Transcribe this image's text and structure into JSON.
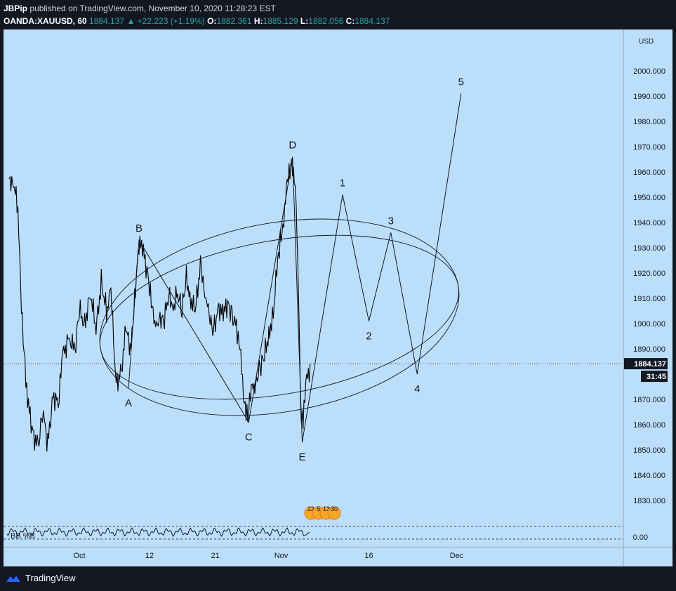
{
  "header": {
    "publisher": "JBPip",
    "published_text": "published on TradingView.com, November 10, 2020 11:28:23 EST",
    "symbol": "OANDA:XAUUSD, 60",
    "last": "1884.137",
    "change": "+22.223 (+1.19%)",
    "o_label": "O:",
    "o_value": "1882.361",
    "h_label": "H:",
    "h_value": "1885.129",
    "l_label": "L:",
    "l_value": "1882.056",
    "c_label": "C:",
    "c_value": "1884.137"
  },
  "footer": {
    "brand": "TradingView"
  },
  "colors": {
    "background": "#bbdefb",
    "frame": "#131722",
    "candle": "#000000",
    "price_tag": "#131722"
  },
  "chart_data": {
    "type": "line",
    "currency": "USD",
    "y_ticks": [
      "2000.000",
      "1990.000",
      "1980.000",
      "1970.000",
      "1960.000",
      "1950.000",
      "1940.000",
      "1930.000",
      "1920.000",
      "1910.000",
      "1900.000",
      "1890.000",
      "1870.000",
      "1860.000",
      "1850.000",
      "1840.000",
      "1830.000"
    ],
    "y_range": [
      1826,
      2018
    ],
    "x_ticks": [
      {
        "label": "Oct",
        "d": 0
      },
      {
        "label": "12",
        "d": 8
      },
      {
        "label": "21",
        "d": 15.5
      },
      {
        "label": "Nov",
        "d": 23
      },
      {
        "label": "16",
        "d": 33
      },
      {
        "label": "Dec",
        "d": 43
      }
    ],
    "current_price": "1884.137",
    "countdown": "31:45",
    "price_series": [
      [
        -8,
        1955
      ],
      [
        -7.6,
        1958
      ],
      [
        -7,
        1945
      ],
      [
        -6.6,
        1905
      ],
      [
        -6.2,
        1885
      ],
      [
        -5.9,
        1870
      ],
      [
        -5.4,
        1858
      ],
      [
        -4.7,
        1851
      ],
      [
        -4.2,
        1866
      ],
      [
        -3.6,
        1852
      ],
      [
        -3.0,
        1872
      ],
      [
        -2.4,
        1868
      ],
      [
        -1.9,
        1887
      ],
      [
        -1.2,
        1895
      ],
      [
        -0.5,
        1889
      ],
      [
        0,
        1905
      ],
      [
        0.6,
        1900
      ],
      [
        1.3,
        1912
      ],
      [
        1.9,
        1897
      ],
      [
        2.5,
        1917
      ],
      [
        3.1,
        1905
      ],
      [
        3.6,
        1912
      ],
      [
        4.2,
        1876
      ],
      [
        4.8,
        1882
      ],
      [
        5.3,
        1897
      ],
      [
        5.9,
        1890
      ],
      [
        6.3,
        1911
      ],
      [
        6.8,
        1932
      ],
      [
        7.3,
        1928
      ],
      [
        7.8,
        1920
      ],
      [
        8.2,
        1910
      ],
      [
        8.6,
        1897
      ],
      [
        9.1,
        1904
      ],
      [
        9.6,
        1900
      ],
      [
        10.2,
        1911
      ],
      [
        10.6,
        1906
      ],
      [
        11.2,
        1912
      ],
      [
        11.7,
        1905
      ],
      [
        12.2,
        1918
      ],
      [
        12.7,
        1910
      ],
      [
        13.2,
        1904
      ],
      [
        13.8,
        1924
      ],
      [
        14.3,
        1914
      ],
      [
        14.8,
        1901
      ],
      [
        15.3,
        1898
      ],
      [
        15.9,
        1907
      ],
      [
        16.4,
        1903
      ],
      [
        16.9,
        1908
      ],
      [
        17.4,
        1904
      ],
      [
        18.0,
        1897
      ],
      [
        18.4,
        1885
      ],
      [
        18.8,
        1870
      ],
      [
        19.2,
        1863
      ],
      [
        19.6,
        1873
      ],
      [
        20.1,
        1878
      ],
      [
        20.6,
        1882
      ],
      [
        21.1,
        1887
      ],
      [
        21.6,
        1896
      ],
      [
        22.1,
        1904
      ],
      [
        22.5,
        1920
      ],
      [
        22.9,
        1932
      ],
      [
        23.3,
        1943
      ],
      [
        23.7,
        1955
      ],
      [
        24.1,
        1962
      ],
      [
        24.4,
        1964
      ],
      [
        24.7,
        1947
      ],
      [
        25.0,
        1909
      ],
      [
        25.2,
        1868
      ],
      [
        25.5,
        1862
      ],
      [
        25.9,
        1877
      ],
      [
        26.3,
        1884
      ]
    ],
    "oscillator": {
      "label": "BB %B",
      "level_label": "0.00"
    },
    "event_icons": [
      "22",
      "5",
      "13",
      "30"
    ],
    "annotations": {
      "points": [
        {
          "label": "A",
          "d": 5.6,
          "v": 1874.5
        },
        {
          "label": "B",
          "d": 6.8,
          "v": 1933
        },
        {
          "label": "C",
          "d": 19.3,
          "v": 1861
        },
        {
          "label": "D",
          "d": 24.3,
          "v": 1966
        },
        {
          "label": "E",
          "d": 25.4,
          "v": 1853
        },
        {
          "label": "1",
          "d": 30.0,
          "v": 1951
        },
        {
          "label": "2",
          "d": 33.0,
          "v": 1901
        },
        {
          "label": "3",
          "d": 35.5,
          "v": 1936
        },
        {
          "label": "4",
          "d": 38.5,
          "v": 1880
        },
        {
          "label": "5",
          "d": 43.5,
          "v": 1991
        }
      ],
      "ellipses": [
        {
          "cd": 22.8,
          "cv": 1902.5,
          "rd": 20.7,
          "rv": 37.4,
          "tilt": -10
        },
        {
          "cd": 22.8,
          "cv": 1902.5,
          "rd": 20.7,
          "rv": 30.4,
          "tilt": -10
        }
      ]
    }
  }
}
